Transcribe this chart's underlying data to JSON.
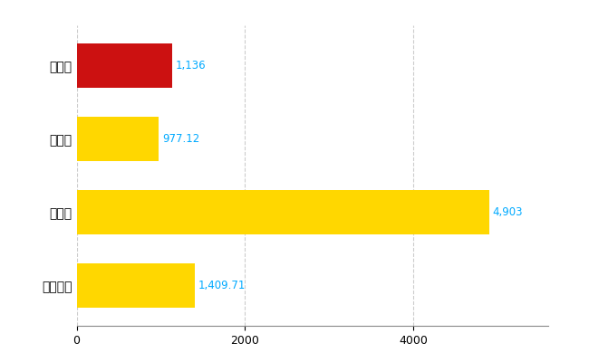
{
  "categories": [
    "全国平均",
    "県最大",
    "県平均",
    "恵那市"
  ],
  "values": [
    1409.71,
    4903,
    977.12,
    1136
  ],
  "bar_colors": [
    "#FFD700",
    "#FFD700",
    "#FFD700",
    "#CC1111"
  ],
  "value_labels": [
    "1,409.71",
    "4,903",
    "977.12",
    "1,136"
  ],
  "xlim": [
    0,
    5600
  ],
  "xticks": [
    0,
    2000,
    4000
  ],
  "background_color": "#FFFFFF",
  "grid_color": "#CCCCCC",
  "label_color": "#00AAFF",
  "bar_height": 0.6,
  "figsize": [
    6.5,
    4.0
  ],
  "dpi": 100
}
